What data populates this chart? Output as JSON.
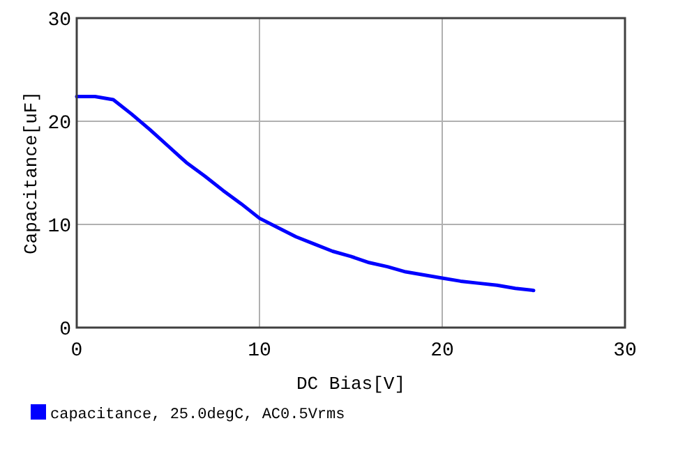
{
  "chart_data": {
    "type": "line",
    "xlabel": "DC Bias[V]",
    "ylabel": "Capacitance[uF]",
    "xlim": [
      0,
      30
    ],
    "ylim": [
      0,
      30
    ],
    "xticks": [
      0,
      10,
      20,
      30
    ],
    "yticks": [
      0,
      10,
      20,
      30
    ],
    "grid": true,
    "legend": "bottom",
    "line_style": "solid",
    "marker": "none",
    "x": [
      0,
      1,
      2,
      3,
      4,
      5,
      6,
      7,
      8,
      9,
      10,
      11,
      12,
      13,
      14,
      15,
      16,
      17,
      18,
      19,
      20,
      21,
      22,
      23,
      24,
      25
    ],
    "series": [
      {
        "name": "capacitance, 25.0degC, AC0.5Vrms",
        "color": "#0000ff",
        "values": [
          22.4,
          22.4,
          22.1,
          20.7,
          19.2,
          17.6,
          16.0,
          14.7,
          13.3,
          12.0,
          10.6,
          9.7,
          8.8,
          8.1,
          7.4,
          6.9,
          6.3,
          5.9,
          5.4,
          5.1,
          4.8,
          4.5,
          4.3,
          4.1,
          3.8,
          3.6
        ]
      }
    ]
  }
}
